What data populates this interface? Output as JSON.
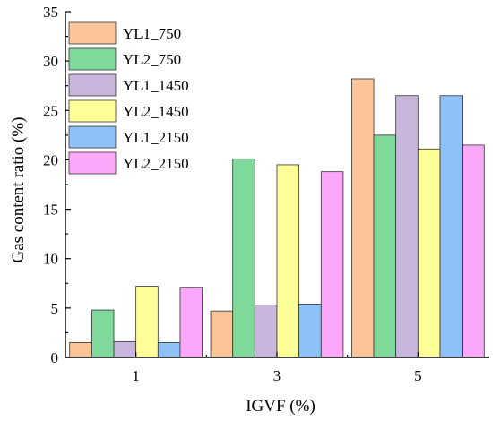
{
  "chart_data": {
    "type": "bar",
    "title": "",
    "xlabel": "IGVF (%)",
    "ylabel": "Gas content ratio (%)",
    "categories": [
      "1",
      "3",
      "5"
    ],
    "ylim": [
      0,
      35
    ],
    "yticks": [
      0,
      5,
      10,
      15,
      20,
      25,
      30,
      35
    ],
    "grid": false,
    "legend_position": "top-left",
    "series": [
      {
        "name": "YL1_750",
        "color": "#FDC597",
        "values": [
          1.5,
          4.7,
          28.2
        ]
      },
      {
        "name": "YL2_750",
        "color": "#7FD99A",
        "values": [
          4.8,
          20.1,
          22.5
        ]
      },
      {
        "name": "YL1_1450",
        "color": "#C9B6DC",
        "values": [
          1.6,
          5.3,
          26.5
        ]
      },
      {
        "name": "YL2_1450",
        "color": "#FFFF99",
        "values": [
          7.2,
          19.5,
          21.1
        ]
      },
      {
        "name": "YL1_2150",
        "color": "#8EC0FA",
        "values": [
          1.5,
          5.4,
          26.5
        ]
      },
      {
        "name": "YL2_2150",
        "color": "#FCA8FA",
        "values": [
          7.1,
          18.8,
          21.5
        ]
      }
    ]
  }
}
